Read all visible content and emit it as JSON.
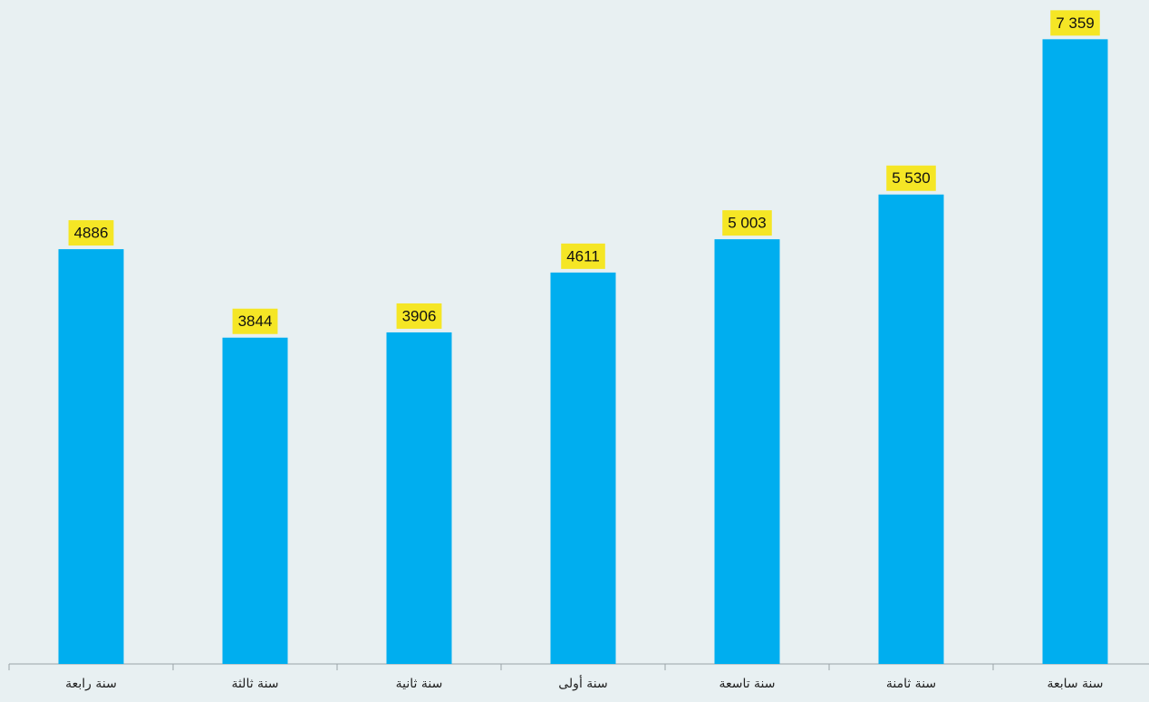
{
  "chart_data": {
    "type": "bar",
    "categories": [
      "سنة رابعة",
      "سنة ثالثة",
      "سنة ثانية",
      "سنة أولى",
      "سنة تاسعة",
      "سنة ثامنة",
      "سنة سابعة"
    ],
    "values": [
      4886,
      3844,
      3906,
      4611,
      5003,
      5530,
      7359
    ],
    "value_labels": [
      "4886",
      "3844",
      "3906",
      "4611",
      "5 003",
      "5 530",
      "7 359"
    ],
    "color": "#00aeef",
    "label_color": "#f5e625",
    "ylim": [
      0,
      7800
    ]
  }
}
